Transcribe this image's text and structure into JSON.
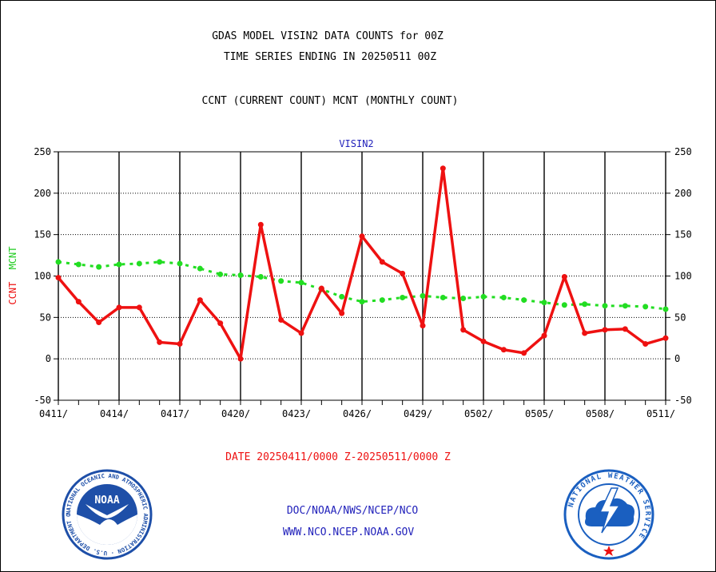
{
  "header": {
    "title_line1": "GDAS MODEL VISIN2 DATA COUNTS for 00Z",
    "title_line2": "TIME SERIES ENDING IN 20250511 00Z",
    "legend_line": "CCNT (CURRENT COUNT) MCNT (MONTHLY COUNT)"
  },
  "footer": {
    "date_range": "DATE 20250411/0000 Z-20250511/0000 Z",
    "org_line": "DOC/NOAA/NWS/NCEP/NCO",
    "url_line": "WWW.NCO.NCEP.NOAA.GOV"
  },
  "logos": {
    "noaa_label": "NOAA",
    "noaa_ring_text": "NATIONAL OCEANIC AND ATMOSPHERIC ADMINISTRATION · U.S. DEPARTMENT OF COMMERCE",
    "nws_ring_text": "NATIONAL WEATHER SERVICE"
  },
  "colors": {
    "ccnt": "#ee1111",
    "mcnt": "#22dd22",
    "title_blue": "#2222bb",
    "noaa_blue": "#1e4fa8",
    "nws_blue": "#1a5fc0"
  },
  "chart_data": {
    "type": "line",
    "title": "VISIN2",
    "ylabel_parts": [
      "CCNT",
      "MCNT"
    ],
    "ylim": [
      -50,
      250
    ],
    "yticks": [
      -50,
      0,
      50,
      100,
      150,
      200,
      250
    ],
    "xtick_labels": [
      "0411/",
      "0414/",
      "0417/",
      "0420/",
      "0423/",
      "0426/",
      "0429/",
      "0502/",
      "0505/",
      "0508/",
      "0511/"
    ],
    "x": [
      "0411",
      "0412",
      "0413",
      "0414",
      "0415",
      "0416",
      "0417",
      "0418",
      "0419",
      "0420",
      "0421",
      "0422",
      "0423",
      "0424",
      "0425",
      "0426",
      "0427",
      "0428",
      "0429",
      "0430",
      "0501",
      "0502",
      "0503",
      "0504",
      "0505",
      "0506",
      "0507",
      "0508",
      "0509",
      "0510",
      "0511"
    ],
    "grid": true,
    "series": [
      {
        "name": "CCNT",
        "values": [
          98,
          69,
          44,
          62,
          62,
          20,
          18,
          71,
          43,
          0,
          162,
          47,
          31,
          85,
          55,
          148,
          117,
          103,
          40,
          230,
          35,
          21,
          11,
          7,
          28,
          99,
          31,
          35,
          36,
          18,
          25
        ]
      },
      {
        "name": "MCNT",
        "values": [
          117,
          114,
          111,
          114,
          115,
          117,
          115,
          109,
          102,
          101,
          99,
          94,
          92,
          84,
          75,
          69,
          71,
          74,
          76,
          74,
          73,
          75,
          74,
          71,
          68,
          65,
          66,
          64,
          64,
          63,
          60
        ]
      }
    ]
  }
}
